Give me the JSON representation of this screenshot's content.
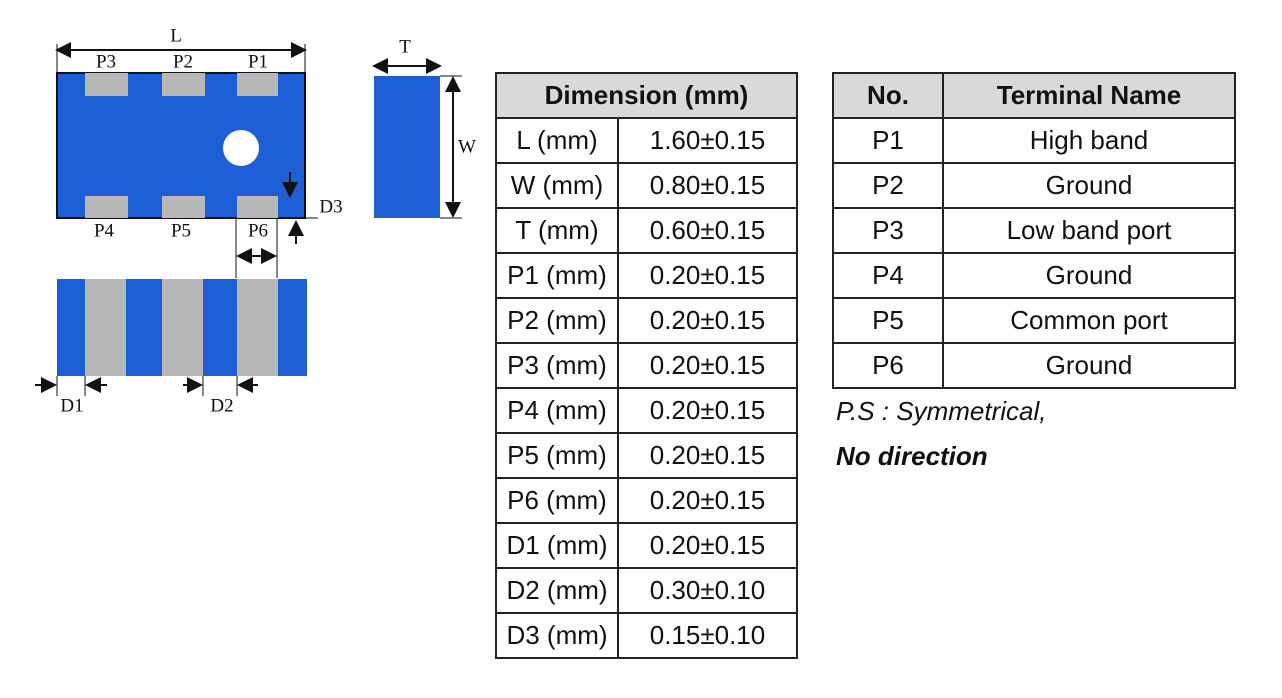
{
  "diagram": {
    "labels": {
      "L": "L",
      "T": "T",
      "W": "W",
      "P3": "P3",
      "P2": "P2",
      "P1": "P1",
      "P4": "P4",
      "P5": "P5",
      "P6": "P6",
      "D3": "D3",
      "D1": "D1",
      "D2": "D2"
    }
  },
  "dimension_table": {
    "header": "Dimension (mm)",
    "rows": [
      [
        "L (mm)",
        "1.60±0.15"
      ],
      [
        "W (mm)",
        "0.80±0.15"
      ],
      [
        "T (mm)",
        "0.60±0.15"
      ],
      [
        "P1 (mm)",
        "0.20±0.15"
      ],
      [
        "P2 (mm)",
        "0.20±0.15"
      ],
      [
        "P3 (mm)",
        "0.20±0.15"
      ],
      [
        "P4 (mm)",
        "0.20±0.15"
      ],
      [
        "P5 (mm)",
        "0.20±0.15"
      ],
      [
        "P6 (mm)",
        "0.20±0.15"
      ],
      [
        "D1 (mm)",
        "0.20±0.15"
      ],
      [
        "D2 (mm)",
        "0.30±0.10"
      ],
      [
        "D3 (mm)",
        "0.15±0.10"
      ]
    ]
  },
  "terminal_table": {
    "headers": [
      "No.",
      "Terminal Name"
    ],
    "rows": [
      [
        "P1",
        "High band"
      ],
      [
        "P2",
        "Ground"
      ],
      [
        "P3",
        "Low band port"
      ],
      [
        "P4",
        "Ground"
      ],
      [
        "P5",
        "Common port"
      ],
      [
        "P6",
        "Ground"
      ]
    ]
  },
  "note": {
    "line1": "P.S : Symmetrical,",
    "line2": "No direction"
  }
}
